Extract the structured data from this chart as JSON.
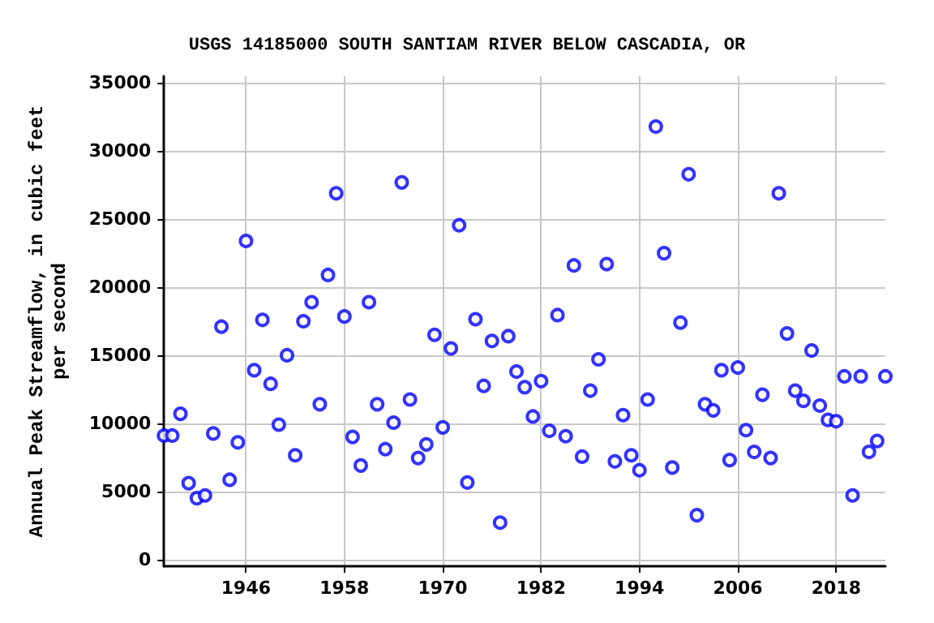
{
  "chart_data": {
    "type": "scatter",
    "title": "USGS 14185000 SOUTH SANTIAM RIVER BELOW CASCADIA, OR",
    "ylabel": "Annual Peak Streamflow, in cubic feet\nper second",
    "x": [
      1936,
      1937,
      1938,
      1939,
      1940,
      1941,
      1942,
      1943,
      1944,
      1945,
      1946,
      1947,
      1948,
      1949,
      1950,
      1951,
      1952,
      1953,
      1954,
      1955,
      1956,
      1957,
      1958,
      1959,
      1960,
      1961,
      1962,
      1963,
      1964,
      1965,
      1966,
      1967,
      1968,
      1969,
      1970,
      1971,
      1972,
      1973,
      1974,
      1975,
      1976,
      1977,
      1978,
      1979,
      1980,
      1981,
      1982,
      1983,
      1984,
      1985,
      1986,
      1987,
      1988,
      1989,
      1990,
      1991,
      1992,
      1993,
      1994,
      1995,
      1996,
      1997,
      1998,
      1999,
      2000,
      2001,
      2002,
      2003,
      2004,
      2005,
      2006,
      2007,
      2008,
      2009,
      2010,
      2011,
      2012,
      2013,
      2014,
      2015,
      2016,
      2017,
      2018,
      2019,
      2020,
      2021,
      2022,
      2023,
      2024
    ],
    "series": [
      {
        "color": "#0000ff",
        "values": [
          9100,
          9100,
          10700,
          5600,
          4500,
          4700,
          9250,
          17100,
          5850,
          8600,
          23400,
          13900,
          17600,
          12900,
          9900,
          15000,
          7650,
          17500,
          18900,
          11400,
          20900,
          26900,
          17850,
          9000,
          6900,
          18900,
          11400,
          8100,
          10050,
          27700,
          11750,
          7450,
          8450,
          16500,
          9700,
          15500,
          24550,
          5650,
          17650,
          12750,
          16050,
          2700,
          16400,
          13800,
          12650,
          10500,
          13100,
          9450,
          17950,
          9050,
          21600,
          7550,
          12400,
          14700,
          21700,
          7200,
          10600,
          7650,
          6550,
          11750,
          31800,
          22500,
          6750,
          17400,
          28300,
          3250,
          11400,
          10950,
          13900,
          7300,
          14100,
          9500,
          7900,
          12100,
          7450,
          26900,
          16600,
          12400,
          11650,
          15350,
          11300,
          10250,
          10150,
          13450,
          4700,
          13450,
          7900,
          8700,
          13450
        ]
      }
    ],
    "xlim": [
      1936,
      2024
    ],
    "xticks": [
      1946,
      1958,
      1970,
      1982,
      1994,
      2006,
      2018
    ],
    "ylim": [
      -500,
      35500
    ],
    "yticks": [
      0,
      5000,
      10000,
      15000,
      20000,
      25000,
      30000,
      35000
    ],
    "grid": true,
    "marker": "circle"
  }
}
